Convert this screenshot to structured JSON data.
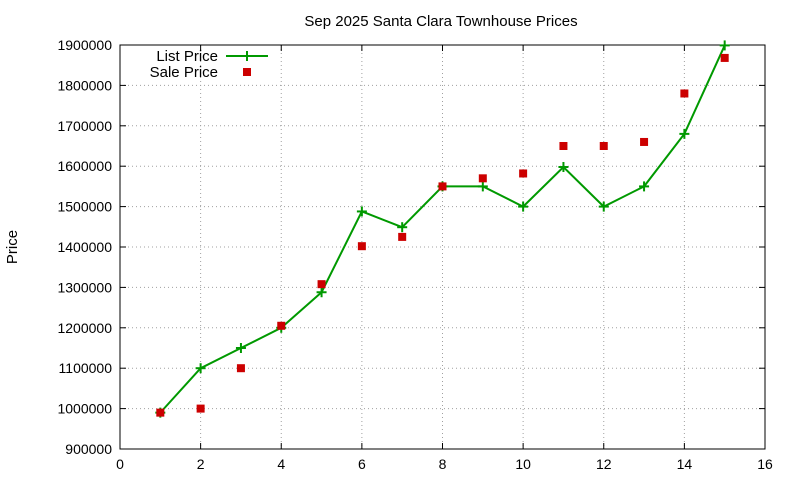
{
  "chart_data": {
    "type": "line",
    "title": "Sep 2025 Santa Clara Townhouse Prices",
    "xlabel": "",
    "ylabel": "Price",
    "xlim": [
      0,
      16
    ],
    "ylim": [
      900000,
      1900000
    ],
    "x_ticks": [
      0,
      2,
      4,
      6,
      8,
      10,
      12,
      14,
      16
    ],
    "y_ticks": [
      900000,
      1000000,
      1100000,
      1200000,
      1300000,
      1400000,
      1500000,
      1600000,
      1700000,
      1800000,
      1900000
    ],
    "grid": true,
    "legend_position": "top-left",
    "series": [
      {
        "name": "List Price",
        "style": "line-with-plus-markers",
        "color": "#009900",
        "x": [
          1,
          2,
          3,
          4,
          5,
          6,
          7,
          8,
          9,
          10,
          11,
          12,
          13,
          14,
          15
        ],
        "y": [
          990000,
          1100000,
          1150000,
          1200000,
          1288000,
          1488000,
          1449000,
          1550000,
          1550000,
          1500000,
          1598000,
          1500000,
          1550000,
          1680000,
          1899000
        ]
      },
      {
        "name": "Sale Price",
        "style": "square-markers",
        "color": "#cc0000",
        "x": [
          1,
          2,
          3,
          4,
          5,
          6,
          7,
          8,
          9,
          10,
          11,
          12,
          13,
          14,
          15
        ],
        "y": [
          990000,
          1000000,
          1100000,
          1205000,
          1308000,
          1402000,
          1425000,
          1550000,
          1570000,
          1582000,
          1650000,
          1650000,
          1660000,
          1780000,
          1868000
        ]
      }
    ]
  }
}
